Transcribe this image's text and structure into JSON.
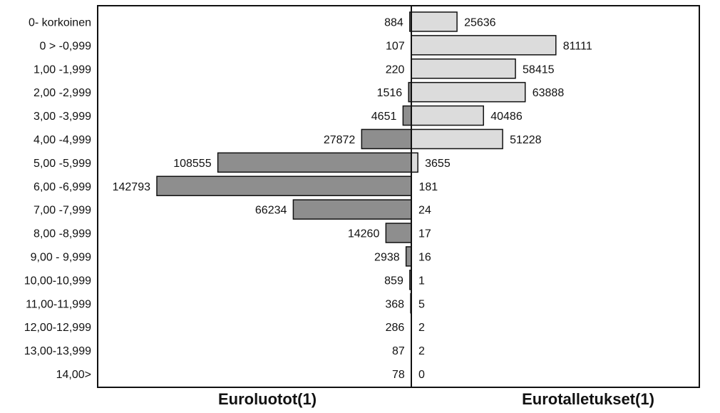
{
  "chart_data": {
    "type": "bar",
    "orientation": "horizontal-diverging",
    "categories": [
      "0- korkoinen",
      "0 > -0,999",
      "1,00 -1,999",
      "2,00 -2,999",
      "3,00 -3,999",
      "4,00 -4,999",
      "5,00 -5,999",
      "6,00 -6,999",
      "7,00 -7,999",
      "8,00 -8,999",
      "9,00 - 9,999",
      "10,00-10,999",
      "11,00-11,999",
      "12,00-12,999",
      "13,00-13,999",
      "14,00>"
    ],
    "series": [
      {
        "name": "Euroluotot(1)",
        "side": "left",
        "color": "#8e8e8e",
        "values": [
          884,
          107,
          220,
          1516,
          4651,
          27872,
          108555,
          142793,
          66234,
          14260,
          2938,
          859,
          368,
          286,
          87,
          78
        ]
      },
      {
        "name": "Eurotalletukset(1)",
        "side": "right",
        "color": "#dcdcdc",
        "values": [
          25636,
          81111,
          58415,
          63888,
          40486,
          51228,
          3655,
          181,
          24,
          17,
          16,
          1,
          5,
          2,
          2,
          0
        ]
      }
    ],
    "xlim": [
      -150000,
      90000
    ],
    "legend": "below",
    "grid": false,
    "colors": {
      "frame": "#111111",
      "axis": "#111111"
    }
  }
}
